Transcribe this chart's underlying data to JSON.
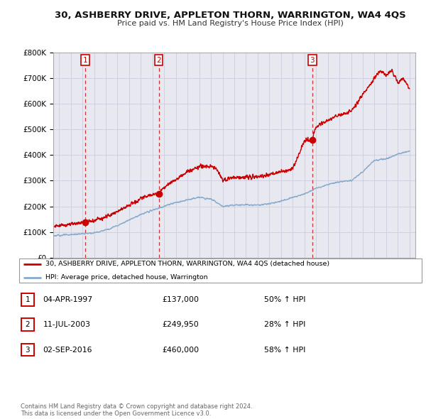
{
  "title": "30, ASHBERRY DRIVE, APPLETON THORN, WARRINGTON, WA4 4QS",
  "subtitle": "Price paid vs. HM Land Registry's House Price Index (HPI)",
  "ylim": [
    0,
    800000
  ],
  "yticks": [
    0,
    100000,
    200000,
    300000,
    400000,
    500000,
    600000,
    700000,
    800000
  ],
  "ytick_labels": [
    "£0",
    "£100K",
    "£200K",
    "£300K",
    "£400K",
    "£500K",
    "£600K",
    "£700K",
    "£800K"
  ],
  "xlim_start": 1994.5,
  "xlim_end": 2025.5,
  "sales": [
    {
      "year": 1997.25,
      "price": 137000,
      "label": "1"
    },
    {
      "year": 2003.53,
      "price": 249950,
      "label": "2"
    },
    {
      "year": 2016.67,
      "price": 460000,
      "label": "3"
    }
  ],
  "sale_color": "#cc0000",
  "hpi_color": "#88aacc",
  "grid_color": "#ccccdd",
  "plot_bg": "#e8e8f0",
  "vline_color": "#cc3333",
  "legend_entries": [
    "30, ASHBERRY DRIVE, APPLETON THORN, WARRINGTON, WA4 4QS (detached house)",
    "HPI: Average price, detached house, Warrington"
  ],
  "table_rows": [
    {
      "num": "1",
      "date": "04-APR-1997",
      "price": "£137,000",
      "hpi": "50% ↑ HPI"
    },
    {
      "num": "2",
      "date": "11-JUL-2003",
      "price": "£249,950",
      "hpi": "28% ↑ HPI"
    },
    {
      "num": "3",
      "date": "02-SEP-2016",
      "price": "£460,000",
      "hpi": "58% ↑ HPI"
    }
  ],
  "footnote": "Contains HM Land Registry data © Crown copyright and database right 2024.\nThis data is licensed under the Open Government Licence v3.0."
}
